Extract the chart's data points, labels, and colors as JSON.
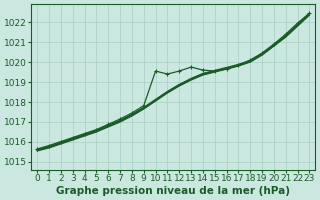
{
  "background_color": "#cbe8e0",
  "plot_bg_color": "#cbe8e0",
  "grid_color": "#a8cec4",
  "line_color": "#1a5c28",
  "marker_color": "#1a5c28",
  "xlabel": "Graphe pression niveau de la mer (hPa)",
  "xlabel_fontsize": 7.5,
  "tick_fontsize": 6.5,
  "ylim": [
    1014.6,
    1022.9
  ],
  "yticks": [
    1015,
    1016,
    1017,
    1018,
    1019,
    1020,
    1021,
    1022
  ],
  "xlim": [
    -0.5,
    23.5
  ],
  "xticks": [
    0,
    1,
    2,
    3,
    4,
    5,
    6,
    7,
    8,
    9,
    10,
    11,
    12,
    13,
    14,
    15,
    16,
    17,
    18,
    19,
    20,
    21,
    22,
    23
  ],
  "hours": [
    0,
    1,
    2,
    3,
    4,
    5,
    6,
    7,
    8,
    9,
    10,
    11,
    12,
    13,
    14,
    15,
    16,
    17,
    18,
    19,
    20,
    21,
    22,
    23
  ],
  "line1": [
    1015.6,
    1015.75,
    1015.95,
    1016.15,
    1016.35,
    1016.55,
    1016.8,
    1017.05,
    1017.35,
    1017.7,
    1018.1,
    1018.5,
    1018.85,
    1019.15,
    1019.4,
    1019.55,
    1019.7,
    1019.85,
    1020.05,
    1020.4,
    1020.85,
    1021.3,
    1021.85,
    1022.4
  ],
  "line2": [
    1015.55,
    1015.7,
    1015.9,
    1016.1,
    1016.3,
    1016.5,
    1016.75,
    1017.0,
    1017.3,
    1017.65,
    1018.05,
    1018.45,
    1018.8,
    1019.1,
    1019.35,
    1019.5,
    1019.65,
    1019.8,
    1020.0,
    1020.35,
    1020.8,
    1021.25,
    1021.8,
    1022.35
  ],
  "line3_marker": [
    1015.65,
    1015.82,
    1016.02,
    1016.22,
    1016.42,
    1016.62,
    1016.88,
    1017.15,
    1017.45,
    1017.82,
    1019.55,
    1019.4,
    1019.55,
    1019.75,
    1019.6,
    1019.55,
    1019.65,
    1019.85,
    1020.1,
    1020.45,
    1020.9,
    1021.4,
    1021.95,
    1022.45
  ],
  "line4": [
    1015.58,
    1015.73,
    1015.93,
    1016.13,
    1016.33,
    1016.53,
    1016.78,
    1017.03,
    1017.33,
    1017.68,
    1018.08,
    1018.48,
    1018.83,
    1019.13,
    1019.38,
    1019.53,
    1019.68,
    1019.83,
    1020.03,
    1020.38,
    1020.83,
    1021.28,
    1021.83,
    1022.38
  ],
  "line5": [
    1015.62,
    1015.78,
    1015.98,
    1016.18,
    1016.38,
    1016.58,
    1016.83,
    1017.08,
    1017.38,
    1017.73,
    1018.13,
    1018.53,
    1018.88,
    1019.18,
    1019.43,
    1019.58,
    1019.73,
    1019.88,
    1020.08,
    1020.43,
    1020.88,
    1021.33,
    1021.88,
    1022.43
  ]
}
